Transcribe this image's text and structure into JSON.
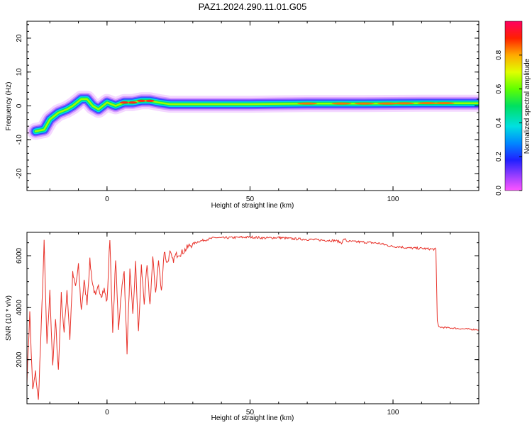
{
  "figure": {
    "title": "PAZ1.2024.290.11.01.G05"
  },
  "chart_data": [
    {
      "type": "heatmap",
      "xlabel": "Height of straight line (km)",
      "ylabel": "Frequency (Hz)",
      "xlim": [
        -28,
        130
      ],
      "ylim": [
        -25,
        25
      ],
      "xticks": [
        0,
        50,
        100
      ],
      "yticks": [
        -20,
        -10,
        0,
        10,
        20
      ],
      "colorbar": {
        "label": "Normalized spectral amplitude",
        "range": [
          0,
          1
        ],
        "ticks": [
          0.0,
          0.2,
          0.4,
          0.6,
          0.8
        ],
        "tick_labels": [
          "0.0",
          "0.2",
          "0.4",
          "0.6",
          "0.8"
        ],
        "colormap": "rainbow (magenta-blue-cyan-green-yellow-red)"
      },
      "ridge": [
        {
          "x": -25,
          "y": -7.5
        },
        {
          "x": -22,
          "y": -7
        },
        {
          "x": -20,
          "y": -4
        },
        {
          "x": -17,
          "y": -2
        },
        {
          "x": -14,
          "y": -1
        },
        {
          "x": -12,
          "y": 0
        },
        {
          "x": -9,
          "y": 2
        },
        {
          "x": -7,
          "y": 2
        },
        {
          "x": -5,
          "y": 0
        },
        {
          "x": -3,
          "y": -1
        },
        {
          "x": 0,
          "y": 1
        },
        {
          "x": 3,
          "y": 0
        },
        {
          "x": 6,
          "y": 1
        },
        {
          "x": 9,
          "y": 1
        },
        {
          "x": 12,
          "y": 1.5
        },
        {
          "x": 15,
          "y": 1.5
        },
        {
          "x": 18,
          "y": 1
        },
        {
          "x": 22,
          "y": 0.5
        },
        {
          "x": 30,
          "y": 0.5
        },
        {
          "x": 50,
          "y": 0.5
        },
        {
          "x": 70,
          "y": 0.7
        },
        {
          "x": 90,
          "y": 0.7
        },
        {
          "x": 110,
          "y": 0.8
        },
        {
          "x": 120,
          "y": 0.8
        },
        {
          "x": 130,
          "y": 0.8
        }
      ]
    },
    {
      "type": "line",
      "xlabel": "Height of straight line (km)",
      "ylabel": "SNR (10 * v/v)",
      "xlim": [
        -28,
        130
      ],
      "ylim": [
        300,
        6900
      ],
      "xticks": [
        0,
        50,
        100
      ],
      "yticks": [
        2000,
        4000,
        6000
      ],
      "color": "#e8322a",
      "series": [
        {
          "x": [
            -28,
            -27,
            -26,
            -25,
            -24,
            -23,
            -22,
            -21,
            -20,
            -19,
            -18,
            -17,
            -16,
            -15,
            -14,
            -13,
            -12,
            -11,
            -10,
            -9,
            -8,
            -7,
            -6,
            -5,
            -4,
            -3,
            -2,
            -1,
            0,
            1,
            2,
            3,
            4,
            5,
            6,
            7,
            8,
            9,
            10,
            11,
            12,
            13,
            14,
            15,
            16,
            17,
            18,
            19,
            20,
            21,
            22,
            23,
            24,
            25,
            26,
            27,
            28,
            29,
            30,
            32,
            34,
            36,
            38,
            40,
            45,
            50,
            55,
            60,
            65,
            70,
            75,
            80,
            82,
            83,
            84,
            85,
            90,
            95,
            98,
            100,
            102,
            105,
            110,
            114,
            115,
            115.5,
            116,
            120,
            125,
            130
          ],
          "y": [
            1200,
            3800,
            800,
            1500,
            400,
            3300,
            6500,
            2500,
            4600,
            1800,
            3500,
            1600,
            4500,
            3000,
            4700,
            2800,
            5300,
            4800,
            5600,
            3900,
            5000,
            4200,
            5800,
            4900,
            4400,
            4800,
            4500,
            4700,
            4200,
            6700,
            3000,
            5900,
            3200,
            4600,
            5400,
            2300,
            5400,
            3700,
            5700,
            3000,
            5600,
            4200,
            5600,
            4100,
            5900,
            4600,
            5800,
            4600,
            6200,
            5700,
            6100,
            5800,
            6000,
            6100,
            6100,
            6200,
            6300,
            6400,
            6450,
            6550,
            6600,
            6650,
            6700,
            6680,
            6700,
            6720,
            6680,
            6700,
            6650,
            6630,
            6600,
            6580,
            6500,
            6650,
            6550,
            6550,
            6520,
            6480,
            6400,
            6350,
            6350,
            6300,
            6280,
            6250,
            6250,
            3500,
            3250,
            3220,
            3180,
            3150
          ]
        }
      ]
    }
  ]
}
